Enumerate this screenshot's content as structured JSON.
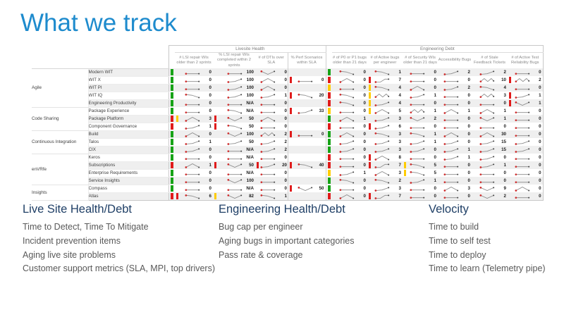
{
  "slide": {
    "title": "What we track"
  },
  "colors": {
    "title_blue": "#1e8bcd",
    "heading_navy": "#1f3f66",
    "status_green": "#17a317",
    "status_red": "#e01b1b",
    "status_yellow": "#ffcc00"
  },
  "scorecard": {
    "header_groups": [
      {
        "label": "Livesite Health",
        "columns": [
          "# LSI repair WIs older than 2 sprints",
          "% LSI repair WIs completed within 2 sprints",
          "# of DTIs over SLA",
          "% Perf Scenarios within SLA"
        ]
      },
      {
        "label": "Engineering Debt",
        "columns": [
          "# of P0 or P1 bugs older than 21 days",
          "# of Active bugs per engineer",
          "# of Security WIs older than 21 days",
          "Accessibility Bugs",
          "# of Stale Feedback Tickets",
          "# of Active Test Reliability Bugs"
        ]
      }
    ],
    "groups": [
      {
        "label": "Agile",
        "span": 5
      },
      {
        "label": "Code Sharing",
        "span": 3
      },
      {
        "label": "Continuous Integration",
        "span": 3
      },
      {
        "label": "enVRfe",
        "span": 4
      },
      {
        "label": "Insights",
        "span": 2
      }
    ],
    "rows": [
      {
        "label": "Modern WIT",
        "ls_status": "green",
        "ls": [
          {
            "spark": "flat",
            "value": "0"
          },
          {
            "spark": "flat",
            "value": "100"
          },
          {
            "spark": "dip",
            "value": "0"
          },
          null
        ],
        "eng_status": "green",
        "eng": [
          {
            "spark": "down",
            "value": "0"
          },
          {
            "spark": "down",
            "value": "1"
          },
          {
            "spark": "flat",
            "value": "0"
          },
          {
            "spark": "up",
            "value": "2"
          },
          {
            "spark": "up",
            "value": "2"
          },
          {
            "spark": "flat",
            "value": "0"
          }
        ]
      },
      {
        "label": "WIT X",
        "ls_status": "green",
        "ls": [
          {
            "spark": "flat",
            "value": "0"
          },
          {
            "spark": "up",
            "value": "100"
          },
          {
            "spark": "peak",
            "value": "0"
          },
          {
            "bar": "red",
            "spark": "flat",
            "value": "0"
          }
        ],
        "eng_status": "red",
        "eng": [
          {
            "spark": "peak",
            "value": "0"
          },
          {
            "bar": "red",
            "spark": "scurve",
            "value": "7"
          },
          {
            "spark": "flat",
            "value": "0"
          },
          {
            "spark": "flat",
            "value": "0"
          },
          {
            "spark": "zigzag",
            "value": "10"
          },
          {
            "bar": "red",
            "spark": "zigzag",
            "value": "2"
          }
        ]
      },
      {
        "label": "WIT PI",
        "ls_status": "green",
        "ls": [
          {
            "spark": "flat",
            "value": "0"
          },
          {
            "spark": "up",
            "value": "100"
          },
          {
            "spark": "peak",
            "value": "0"
          },
          null
        ],
        "eng_status": "yellow",
        "eng": [
          {
            "spark": "flat",
            "value": "0"
          },
          {
            "bar": "yellow",
            "spark": "down",
            "value": "4"
          },
          {
            "spark": "peak",
            "value": "0"
          },
          {
            "spark": "up",
            "value": "2"
          },
          {
            "spark": "down",
            "value": "4"
          },
          {
            "spark": "flat",
            "value": "0"
          }
        ]
      },
      {
        "label": "WIT IQ",
        "ls_status": "green",
        "ls": [
          {
            "spark": "down",
            "value": "0"
          },
          {
            "spark": "up",
            "value": "100"
          },
          {
            "spark": "up",
            "value": "1"
          },
          {
            "bar": "red",
            "spark": "down",
            "value": "20"
          }
        ],
        "eng_status": "red",
        "eng": [
          {
            "spark": "down",
            "value": "0"
          },
          {
            "bar": "yellow",
            "spark": "zigzag",
            "value": "4"
          },
          {
            "spark": "up",
            "value": "1"
          },
          {
            "spark": "flat",
            "value": "0"
          },
          {
            "spark": "zigzag",
            "value": "3"
          },
          {
            "bar": "red",
            "spark": "up",
            "value": "1"
          }
        ]
      },
      {
        "label": "Engineering Productivity",
        "ls_status": "green",
        "ls": [
          {
            "spark": "flat",
            "value": "0"
          },
          {
            "spark": "flat",
            "value": "N/A"
          },
          {
            "spark": "flat",
            "value": "0"
          },
          null
        ],
        "eng_status": "red",
        "eng": [
          {
            "spark": "down",
            "value": "0"
          },
          {
            "bar": "yellow",
            "spark": "up",
            "value": "4"
          },
          {
            "spark": "flat",
            "value": "0"
          },
          {
            "spark": "flat",
            "value": "0"
          },
          {
            "spark": "flat",
            "value": "0"
          },
          {
            "bar": "red",
            "spark": "dip",
            "value": "1"
          }
        ]
      },
      {
        "label": "Package Experience",
        "ls_status": "green",
        "ls": [
          {
            "spark": "flat",
            "value": "0"
          },
          {
            "spark": "down",
            "value": "N/A"
          },
          {
            "spark": "flat",
            "value": "0"
          },
          {
            "bar": "red",
            "spark": "up",
            "value": "33"
          }
        ],
        "eng_status": "yellow",
        "eng": [
          {
            "spark": "flat",
            "value": "0"
          },
          {
            "bar": "yellow",
            "spark": "peak",
            "value": "5"
          },
          {
            "spark": "zigzag",
            "value": "1"
          },
          {
            "spark": "peak",
            "value": "1"
          },
          {
            "spark": "peak",
            "value": "1"
          },
          {
            "spark": "flat",
            "value": "0"
          }
        ]
      },
      {
        "label": "Package Platform",
        "ls_status": "red",
        "ls": [
          {
            "bar": "yellow",
            "spark": "peak",
            "value": "3"
          },
          {
            "bar": "red",
            "spark": "dip",
            "value": "50"
          },
          {
            "spark": "peak",
            "value": "0"
          },
          null
        ],
        "eng_status": "green",
        "eng": [
          {
            "spark": "peak",
            "value": "1"
          },
          {
            "spark": "up",
            "value": "3"
          },
          {
            "spark": "dip",
            "value": "2"
          },
          {
            "spark": "flat",
            "value": "0"
          },
          {
            "spark": "dip",
            "value": "1"
          },
          {
            "spark": "flat",
            "value": "0"
          }
        ]
      },
      {
        "label": "Component Governance",
        "ls_status": "red",
        "ls": [
          {
            "spark": "up",
            "value": "1"
          },
          {
            "bar": "red",
            "spark": "down",
            "value": "50"
          },
          {
            "spark": "flat",
            "value": "0"
          },
          null
        ],
        "eng_status": "red",
        "eng": [
          {
            "spark": "flat",
            "value": "0"
          },
          {
            "bar": "red",
            "spark": "up",
            "value": "6"
          },
          {
            "spark": "flat",
            "value": "0"
          },
          {
            "spark": "flat",
            "value": "0"
          },
          {
            "spark": "flat",
            "value": "0"
          },
          {
            "spark": "flat",
            "value": "0"
          }
        ]
      },
      {
        "label": "Build",
        "ls_status": "green",
        "ls": [
          {
            "spark": "peak",
            "value": "0"
          },
          {
            "spark": "dip",
            "value": "100"
          },
          {
            "spark": "zigzag",
            "value": "2"
          },
          {
            "bar": "red",
            "spark": "flat",
            "value": "0"
          }
        ],
        "eng_status": "green",
        "eng": [
          {
            "spark": "peak",
            "value": "0"
          },
          {
            "spark": "down",
            "value": "3"
          },
          {
            "spark": "down",
            "value": "1"
          },
          {
            "spark": "peak",
            "value": "0"
          },
          {
            "spark": "peak",
            "value": "30"
          },
          {
            "spark": "flat",
            "value": "0"
          }
        ]
      },
      {
        "label": "Talos",
        "ls_status": "green",
        "ls": [
          {
            "spark": "up",
            "value": "1"
          },
          {
            "spark": "up",
            "value": "50"
          },
          {
            "spark": "up",
            "value": "2"
          },
          null
        ],
        "eng_status": "green",
        "eng": [
          {
            "spark": "up",
            "value": "0"
          },
          {
            "spark": "up",
            "value": "3"
          },
          {
            "spark": "up",
            "value": "1"
          },
          {
            "spark": "up",
            "value": "0"
          },
          {
            "spark": "up",
            "value": "15"
          },
          {
            "spark": "up",
            "value": "0"
          }
        ]
      },
      {
        "label": "CIX",
        "ls_status": "green",
        "ls": [
          {
            "spark": "up",
            "value": "0"
          },
          {
            "spark": "flat",
            "value": "N/A"
          },
          {
            "spark": "up",
            "value": "2"
          },
          null
        ],
        "eng_status": "green",
        "eng": [
          {
            "spark": "up",
            "value": "0"
          },
          {
            "spark": "up",
            "value": "3"
          },
          {
            "spark": "up",
            "value": "0"
          },
          {
            "spark": "up",
            "value": "1"
          },
          {
            "spark": "up",
            "value": "15"
          },
          {
            "spark": "up",
            "value": "0"
          }
        ]
      },
      {
        "label": "Keros",
        "ls_status": "green",
        "ls": [
          {
            "spark": "flat",
            "value": "0"
          },
          {
            "spark": "flat",
            "value": "N/A"
          },
          {
            "spark": "flat",
            "value": "0"
          },
          null
        ],
        "eng_status": "red",
        "eng": [
          {
            "spark": "flat",
            "value": "0"
          },
          {
            "bar": "red",
            "spark": "peak",
            "value": "8"
          },
          {
            "spark": "flat",
            "value": "0"
          },
          {
            "spark": "up",
            "value": "1"
          },
          {
            "spark": "up",
            "value": "0"
          },
          {
            "spark": "flat",
            "value": "0"
          }
        ]
      },
      {
        "label": "Subscriptions",
        "ls_status": "red",
        "ls": [
          {
            "spark": "peak",
            "value": "1"
          },
          {
            "bar": "red",
            "spark": "dip",
            "value": "50"
          },
          {
            "bar": "red",
            "spark": "up",
            "value": "20"
          },
          {
            "bar": "red",
            "spark": "down",
            "value": "40"
          }
        ],
        "eng_status": "red",
        "eng": [
          {
            "spark": "flat",
            "value": "0"
          },
          {
            "bar": "red",
            "spark": "scurve",
            "value": "7"
          },
          {
            "bar": "yellow",
            "spark": "down",
            "value": "5"
          },
          {
            "spark": "flat",
            "value": "0"
          },
          {
            "spark": "up",
            "value": "1"
          },
          {
            "spark": "flat",
            "value": "0"
          }
        ]
      },
      {
        "label": "Enterprise Requirements",
        "ls_status": "green",
        "ls": [
          {
            "spark": "flat",
            "value": "0"
          },
          {
            "spark": "flat",
            "value": "N/A"
          },
          {
            "spark": "flat",
            "value": "0"
          },
          null
        ],
        "eng_status": "yellow",
        "eng": [
          {
            "spark": "up",
            "value": "1"
          },
          {
            "spark": "peak",
            "value": "3"
          },
          {
            "bar": "yellow",
            "spark": "down",
            "value": "5"
          },
          {
            "spark": "flat",
            "value": "0"
          },
          {
            "spark": "flat",
            "value": "0"
          },
          {
            "spark": "flat",
            "value": "0"
          }
        ]
      },
      {
        "label": "Service Insights",
        "ls_status": "green",
        "ls": [
          {
            "spark": "flat",
            "value": "0"
          },
          {
            "spark": "dip",
            "value": "100"
          },
          {
            "spark": "flat",
            "value": "0"
          },
          null
        ],
        "eng_status": "green",
        "eng": [
          {
            "spark": "down",
            "value": "0"
          },
          {
            "spark": "down",
            "value": "2"
          },
          {
            "spark": "up",
            "value": "1"
          },
          {
            "spark": "flat",
            "value": "0"
          },
          {
            "spark": "flat",
            "value": "0"
          },
          {
            "spark": "flat",
            "value": "0"
          }
        ]
      },
      {
        "label": "Compass",
        "ls_status": "green",
        "ls": [
          {
            "spark": "flat",
            "value": "0"
          },
          {
            "spark": "flat",
            "value": "N/A"
          },
          {
            "spark": "flat",
            "value": "0"
          },
          {
            "bar": "red",
            "spark": "dip",
            "value": "50"
          }
        ],
        "eng_status": "green",
        "eng": [
          {
            "spark": "flat",
            "value": "0"
          },
          {
            "spark": "up",
            "value": "3"
          },
          {
            "spark": "flat",
            "value": "0"
          },
          {
            "spark": "peak",
            "value": "3"
          },
          {
            "spark": "dip",
            "value": "9"
          },
          {
            "spark": "peak",
            "value": "0"
          }
        ]
      },
      {
        "label": "Atlas",
        "ls_status": "red",
        "ls": [
          {
            "bar": "red",
            "spark": "down",
            "value": "6"
          },
          {
            "bar": "yellow",
            "spark": "dip",
            "value": "82"
          },
          {
            "spark": "down",
            "value": "1"
          },
          null
        ],
        "eng_status": "red",
        "eng": [
          {
            "spark": "peak",
            "value": "0"
          },
          {
            "bar": "red",
            "spark": "scurve",
            "value": "7"
          },
          {
            "spark": "flat",
            "value": "0"
          },
          {
            "spark": "flat",
            "value": "0"
          },
          {
            "spark": "dip",
            "value": "2"
          },
          {
            "spark": "flat",
            "value": "0"
          }
        ]
      }
    ]
  },
  "sections": [
    {
      "heading": "Live Site Health/Debt",
      "items": [
        "Time to Detect, Time To Mitigate",
        "Incident prevention items",
        "Aging live site problems",
        "Customer support metrics (SLA, MPI, top drivers)"
      ]
    },
    {
      "heading": "Engineering Health/Debt",
      "items": [
        "Bug cap per engineer",
        "Aging bugs in important categories",
        "Pass rate & coverage"
      ]
    },
    {
      "heading": "Velocity",
      "items": [
        "Time to build",
        "Time to self test",
        "Time to deploy",
        "Time to learn (Telemetry pipe)"
      ]
    }
  ]
}
